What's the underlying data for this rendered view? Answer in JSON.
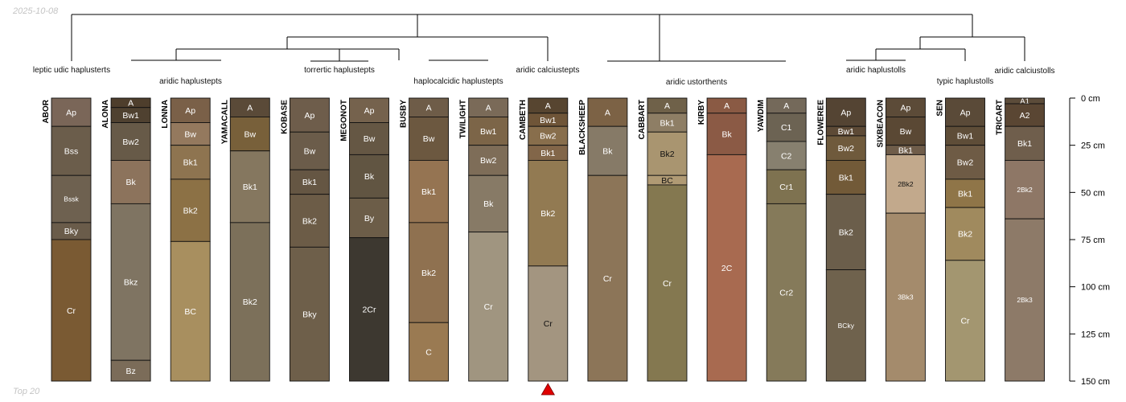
{
  "header_note": "2025-10-08",
  "footer_note": "Top 20",
  "depth_axis": {
    "unit": "cm",
    "max": 150,
    "ticks": [
      0,
      25,
      50,
      75,
      100,
      125,
      150
    ],
    "tick_labels": [
      "0 cm",
      "25 cm",
      "50 cm",
      "75 cm",
      "100 cm",
      "125 cm",
      "150 cm"
    ]
  },
  "taxa": [
    {
      "label": "leptic udic haplusterts"
    },
    {
      "label": "aridic haplustepts"
    },
    {
      "label": "torrertic haplustepts"
    },
    {
      "label": "haplocalcidic haplustepts"
    },
    {
      "label": "aridic calciustepts"
    },
    {
      "label": "aridic ustorthents"
    },
    {
      "label": "aridic haplustolls"
    },
    {
      "label": "typic haplustolls"
    },
    {
      "label": "aridic calciustolls"
    }
  ],
  "marker_profile": "CAMBETH",
  "profiles": [
    {
      "name": "ABOR",
      "horizons": [
        {
          "name": "Ap",
          "top": 0,
          "bottom": 15,
          "color": "#7a6658"
        },
        {
          "name": "Bss",
          "top": 15,
          "bottom": 41,
          "color": "#6b5d4b"
        },
        {
          "name": "Bssk",
          "top": 41,
          "bottom": 66,
          "color": "#6e6150"
        },
        {
          "name": "Bky",
          "top": 66,
          "bottom": 75,
          "color": "#6a5c4a"
        },
        {
          "name": "Cr",
          "top": 75,
          "bottom": 152,
          "color": "#7a5a33"
        }
      ]
    },
    {
      "name": "ALONA",
      "horizons": [
        {
          "name": "A",
          "top": 0,
          "bottom": 5,
          "color": "#4e3e2c"
        },
        {
          "name": "Bw1",
          "top": 5,
          "bottom": 13,
          "color": "#4f4130"
        },
        {
          "name": "Bw2",
          "top": 13,
          "bottom": 33,
          "color": "#675a48"
        },
        {
          "name": "Bk",
          "top": 33,
          "bottom": 56,
          "color": "#8c735c"
        },
        {
          "name": "Bkz",
          "top": 56,
          "bottom": 139,
          "color": "#7f7462"
        },
        {
          "name": "Bz",
          "top": 139,
          "bottom": 152,
          "color": "#7b6c59"
        }
      ]
    },
    {
      "name": "LONNA",
      "horizons": [
        {
          "name": "Ap",
          "top": 0,
          "bottom": 13,
          "color": "#7a6048"
        },
        {
          "name": "Bw",
          "top": 13,
          "bottom": 25,
          "color": "#94795e"
        },
        {
          "name": "Bk1",
          "top": 25,
          "bottom": 43,
          "color": "#8e7450"
        },
        {
          "name": "Bk2",
          "top": 43,
          "bottom": 76,
          "color": "#8c7145"
        },
        {
          "name": "BC",
          "top": 76,
          "bottom": 152,
          "color": "#a88f5f"
        }
      ]
    },
    {
      "name": "YAMACALL",
      "horizons": [
        {
          "name": "A",
          "top": 0,
          "bottom": 10,
          "color": "#5a4a38"
        },
        {
          "name": "Bw",
          "top": 10,
          "bottom": 28,
          "color": "#78603a"
        },
        {
          "name": "Bk1",
          "top": 28,
          "bottom": 66,
          "color": "#85775f"
        },
        {
          "name": "Bk2",
          "top": 66,
          "bottom": 152,
          "color": "#7c705a"
        }
      ]
    },
    {
      "name": "KOBASE",
      "horizons": [
        {
          "name": "Ap",
          "top": 0,
          "bottom": 18,
          "color": "#6e5d4b"
        },
        {
          "name": "Bw",
          "top": 18,
          "bottom": 38,
          "color": "#6b5c4a"
        },
        {
          "name": "Bk1",
          "top": 38,
          "bottom": 51,
          "color": "#655643"
        },
        {
          "name": "Bk2",
          "top": 51,
          "bottom": 79,
          "color": "#6c5c47"
        },
        {
          "name": "Bky",
          "top": 79,
          "bottom": 152,
          "color": "#6e5f4a"
        }
      ]
    },
    {
      "name": "MEGONOT",
      "horizons": [
        {
          "name": "Ap",
          "top": 0,
          "bottom": 13,
          "color": "#75624d"
        },
        {
          "name": "Bw",
          "top": 13,
          "bottom": 30,
          "color": "#655744"
        },
        {
          "name": "Bk",
          "top": 30,
          "bottom": 53,
          "color": "#615542"
        },
        {
          "name": "By",
          "top": 53,
          "bottom": 74,
          "color": "#6c5d48"
        },
        {
          "name": "2Cr",
          "top": 74,
          "bottom": 152,
          "color": "#3d3830"
        }
      ]
    },
    {
      "name": "BUSBY",
      "horizons": [
        {
          "name": "A",
          "top": 0,
          "bottom": 10,
          "color": "#6e5c48"
        },
        {
          "name": "Bw",
          "top": 10,
          "bottom": 33,
          "color": "#6c5840"
        },
        {
          "name": "Bk1",
          "top": 33,
          "bottom": 66,
          "color": "#957452"
        },
        {
          "name": "Bk2",
          "top": 66,
          "bottom": 119,
          "color": "#8f7150"
        },
        {
          "name": "C",
          "top": 119,
          "bottom": 152,
          "color": "#9a7a52"
        }
      ]
    },
    {
      "name": "TWILIGHT",
      "horizons": [
        {
          "name": "A",
          "top": 0,
          "bottom": 10,
          "color": "#7a6a58"
        },
        {
          "name": "Bw1",
          "top": 10,
          "bottom": 25,
          "color": "#7c6548"
        },
        {
          "name": "Bw2",
          "top": 25,
          "bottom": 41,
          "color": "#7e6d58"
        },
        {
          "name": "Bk",
          "top": 41,
          "bottom": 71,
          "color": "#877a66"
        },
        {
          "name": "Cr",
          "top": 71,
          "bottom": 152,
          "color": "#a09580"
        }
      ]
    },
    {
      "name": "CAMBETH",
      "horizons": [
        {
          "name": "A",
          "top": 0,
          "bottom": 8,
          "color": "#574530"
        },
        {
          "name": "Bw1",
          "top": 8,
          "bottom": 15,
          "color": "#6f5538"
        },
        {
          "name": "Bw2",
          "top": 15,
          "bottom": 25,
          "color": "#886e4c"
        },
        {
          "name": "Bk1",
          "top": 25,
          "bottom": 33,
          "color": "#826649"
        },
        {
          "name": "Bk2",
          "top": 33,
          "bottom": 89,
          "color": "#927a52"
        },
        {
          "name": "Cr",
          "top": 89,
          "bottom": 152,
          "color": "#a39580"
        }
      ]
    },
    {
      "name": "BLACKSHEEP",
      "horizons": [
        {
          "name": "A",
          "top": 0,
          "bottom": 15,
          "color": "#7c6245"
        },
        {
          "name": "Bk",
          "top": 15,
          "bottom": 41,
          "color": "#867a67"
        },
        {
          "name": "Cr",
          "top": 41,
          "bottom": 152,
          "color": "#8c7558"
        }
      ]
    },
    {
      "name": "CABBART",
      "horizons": [
        {
          "name": "A",
          "top": 0,
          "bottom": 8,
          "color": "#6f6149"
        },
        {
          "name": "Bk1",
          "top": 8,
          "bottom": 18,
          "color": "#8e7e65"
        },
        {
          "name": "Bk2",
          "top": 18,
          "bottom": 41,
          "color": "#a99570"
        },
        {
          "name": "BC",
          "top": 41,
          "bottom": 46,
          "color": "#b09a74"
        },
        {
          "name": "Cr",
          "top": 46,
          "bottom": 152,
          "color": "#847850"
        }
      ]
    },
    {
      "name": "KIRBY",
      "horizons": [
        {
          "name": "A",
          "top": 0,
          "bottom": 8,
          "color": "#8a5a44"
        },
        {
          "name": "Bk",
          "top": 8,
          "bottom": 30,
          "color": "#8b5a45"
        },
        {
          "name": "2C",
          "top": 30,
          "bottom": 152,
          "color": "#a86a50"
        }
      ]
    },
    {
      "name": "YAWDIM",
      "horizons": [
        {
          "name": "A",
          "top": 0,
          "bottom": 8,
          "color": "#74695a"
        },
        {
          "name": "C1",
          "top": 8,
          "bottom": 23,
          "color": "#6c6353"
        },
        {
          "name": "C2",
          "top": 23,
          "bottom": 38,
          "color": "#87806f"
        },
        {
          "name": "Cr1",
          "top": 38,
          "bottom": 56,
          "color": "#7e7250"
        },
        {
          "name": "Cr2",
          "top": 56,
          "bottom": 152,
          "color": "#857a5a"
        }
      ]
    },
    {
      "name": "FLOWEREE",
      "horizons": [
        {
          "name": "Ap",
          "top": 0,
          "bottom": 15,
          "color": "#544433"
        },
        {
          "name": "Bw1",
          "top": 15,
          "bottom": 20,
          "color": "#5d4a36"
        },
        {
          "name": "Bw2",
          "top": 20,
          "bottom": 33,
          "color": "#6f5a3c"
        },
        {
          "name": "Bk1",
          "top": 33,
          "bottom": 51,
          "color": "#725a38"
        },
        {
          "name": "Bk2",
          "top": 51,
          "bottom": 91,
          "color": "#6b5e4b"
        },
        {
          "name": "BCky",
          "top": 91,
          "bottom": 152,
          "color": "#6f624d"
        }
      ]
    },
    {
      "name": "SIXBEACON",
      "horizons": [
        {
          "name": "Ap",
          "top": 0,
          "bottom": 10,
          "color": "#5c4b38"
        },
        {
          "name": "Bw",
          "top": 10,
          "bottom": 25,
          "color": "#5a4834"
        },
        {
          "name": "Bk1",
          "top": 25,
          "bottom": 30,
          "color": "#6f5d4a"
        },
        {
          "name": "2Bk2",
          "top": 30,
          "bottom": 61,
          "color": "#c2a98c"
        },
        {
          "name": "3Bk3",
          "top": 61,
          "bottom": 152,
          "color": "#a48b6c"
        }
      ]
    },
    {
      "name": "SEN",
      "horizons": [
        {
          "name": "Ap",
          "top": 0,
          "bottom": 15,
          "color": "#5a4a38"
        },
        {
          "name": "Bw1",
          "top": 15,
          "bottom": 25,
          "color": "#5e4d38"
        },
        {
          "name": "Bw2",
          "top": 25,
          "bottom": 43,
          "color": "#6e5b45"
        },
        {
          "name": "Bk1",
          "top": 43,
          "bottom": 58,
          "color": "#8f7548"
        },
        {
          "name": "Bk2",
          "top": 58,
          "bottom": 86,
          "color": "#a08a5e"
        },
        {
          "name": "Cr",
          "top": 86,
          "bottom": 152,
          "color": "#a39670"
        }
      ]
    },
    {
      "name": "TRICART",
      "horizons": [
        {
          "name": "A1",
          "top": 0,
          "bottom": 3,
          "color": "#5c4c3a"
        },
        {
          "name": "A2",
          "top": 3,
          "bottom": 15,
          "color": "#5a4633"
        },
        {
          "name": "Bk1",
          "top": 15,
          "bottom": 33,
          "color": "#6f5e4c"
        },
        {
          "name": "2Bk2",
          "top": 33,
          "bottom": 64,
          "color": "#8e7766"
        },
        {
          "name": "2Bk3",
          "top": 64,
          "bottom": 152,
          "color": "#8d7a68"
        }
      ]
    }
  ]
}
